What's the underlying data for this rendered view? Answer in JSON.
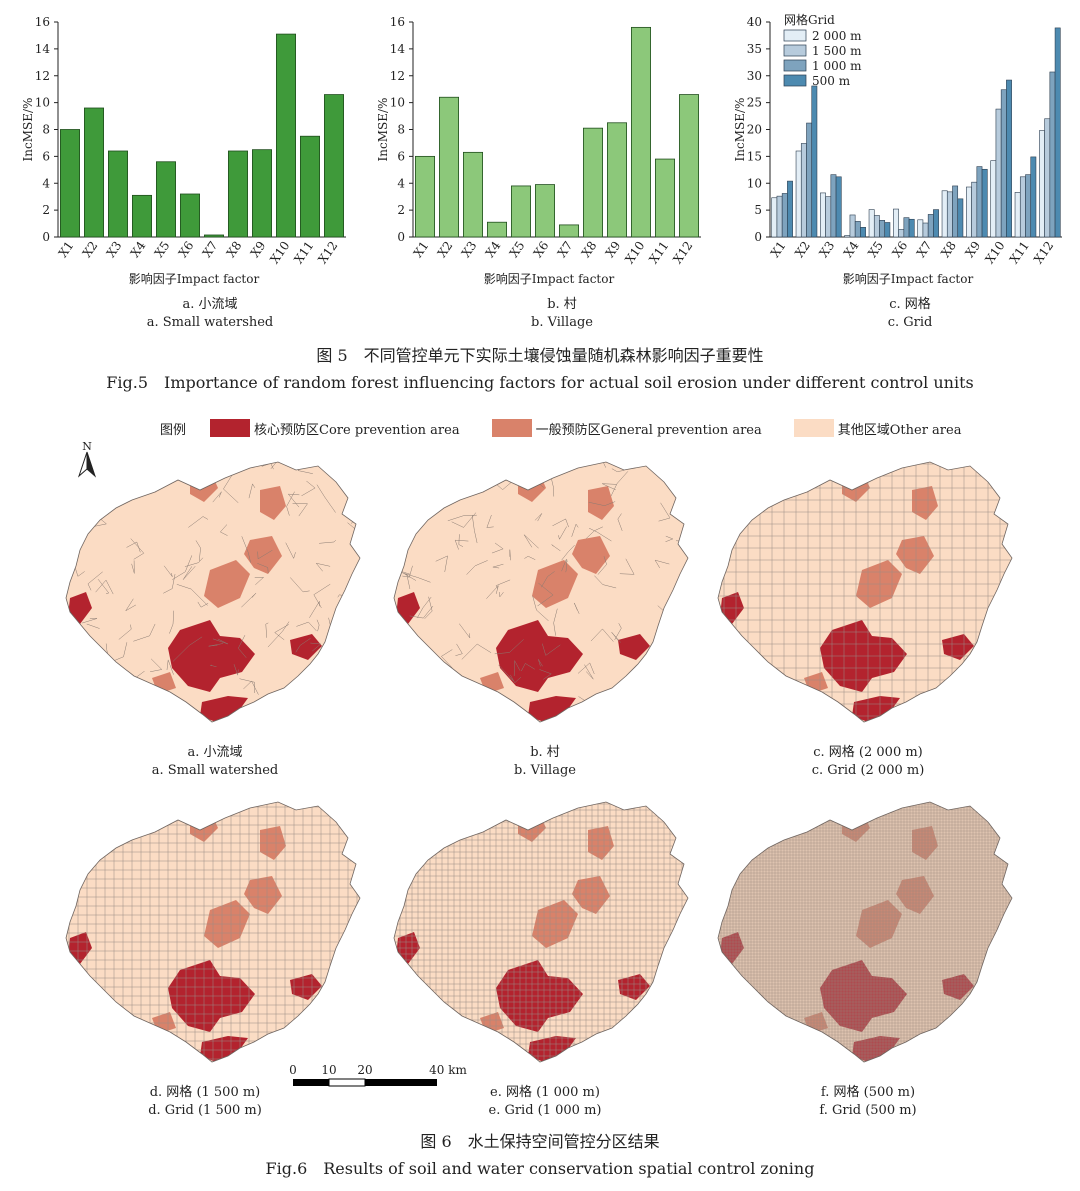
{
  "fig5": {
    "caption_cn": "图 5　不同管控单元下实际土壤侵蚀量随机森林影响因子重要性",
    "caption_en": "Fig.5　Importance of random forest influencing factors for actual soil erosion under different control units",
    "xlabel": "影响因子Impact factor",
    "ylabel": "IncMSE/%"
  },
  "chart_data": [
    {
      "type": "bar",
      "title": "a. Small watershed",
      "sub_cn": "a. 小流域",
      "sub_en": "a. Small watershed",
      "categories": [
        "X1",
        "X2",
        "X3",
        "X4",
        "X5",
        "X6",
        "X7",
        "X8",
        "X9",
        "X10",
        "X11",
        "X12"
      ],
      "values": [
        8.0,
        9.6,
        6.4,
        3.1,
        5.6,
        3.2,
        0.15,
        6.4,
        6.5,
        15.1,
        7.5,
        10.6
      ],
      "ylim": [
        0,
        16
      ],
      "yticks": [
        0,
        2,
        4,
        6,
        8,
        10,
        12,
        14,
        16
      ],
      "xlabel": "影响因子Impact factor",
      "ylabel": "IncMSE/%",
      "color": "#3f9a3a"
    },
    {
      "type": "bar",
      "title": "b. Village",
      "sub_cn": "b. 村",
      "sub_en": "b. Village",
      "categories": [
        "X1",
        "X2",
        "X3",
        "X4",
        "X5",
        "X6",
        "X7",
        "X8",
        "X9",
        "X10",
        "X11",
        "X12"
      ],
      "values": [
        6.0,
        10.4,
        6.3,
        1.1,
        3.8,
        3.9,
        0.9,
        8.1,
        8.5,
        15.6,
        5.8,
        10.6
      ],
      "ylim": [
        0,
        16
      ],
      "yticks": [
        0,
        2,
        4,
        6,
        8,
        10,
        12,
        14,
        16
      ],
      "xlabel": "影响因子Impact factor",
      "ylabel": "IncMSE/%",
      "color": "#8cc87a"
    },
    {
      "type": "bar",
      "title": "c. Grid",
      "sub_cn": "c. 网格",
      "sub_en": "c. Grid",
      "categories": [
        "X1",
        "X2",
        "X3",
        "X4",
        "X5",
        "X6",
        "X7",
        "X8",
        "X9",
        "X10",
        "X11",
        "X12"
      ],
      "legend_title": "网格Grid",
      "legend_position": "top-left",
      "series": [
        {
          "name": "2 000 m",
          "color": "#e3eef6",
          "values": [
            7.3,
            16.0,
            8.2,
            0.3,
            5.1,
            5.2,
            3.2,
            8.6,
            9.3,
            14.2,
            8.3,
            19.8
          ]
        },
        {
          "name": "1 500 m",
          "color": "#b7cbdc",
          "values": [
            7.6,
            17.4,
            7.5,
            4.1,
            4.0,
            1.4,
            2.6,
            8.4,
            10.2,
            23.8,
            11.2,
            22.0
          ]
        },
        {
          "name": "1 000 m",
          "color": "#7ea3be",
          "values": [
            8.1,
            21.2,
            11.6,
            2.9,
            3.1,
            3.6,
            4.2,
            9.5,
            13.1,
            27.4,
            11.6,
            30.7
          ]
        },
        {
          "name": "500 m",
          "color": "#4d8ab0",
          "values": [
            10.4,
            28.1,
            11.2,
            1.8,
            2.7,
            3.3,
            5.1,
            7.1,
            12.6,
            29.2,
            14.9,
            38.9
          ]
        }
      ],
      "ylim": [
        0,
        40
      ],
      "yticks": [
        0,
        5,
        10,
        15,
        20,
        25,
        30,
        35,
        40
      ],
      "xlabel": "影响因子Impact factor",
      "ylabel": "IncMSE/%"
    }
  ],
  "fig6": {
    "caption_cn": "图 6　水土保持空间管控分区结果",
    "caption_en": "Fig.6　Results of soil and water conservation spatial control zoning",
    "legend_title": "图例",
    "legend_items": [
      {
        "label": "核心预防区Core prevention area",
        "color": "#b3232e"
      },
      {
        "label": "一般预防区General prevention area",
        "color": "#d9826a"
      },
      {
        "label": "其他区域Other area",
        "color": "#fbdcc4"
      }
    ],
    "north": "N",
    "scale_labels": [
      "0",
      "10",
      "20",
      "40 km"
    ],
    "maps": [
      {
        "cn": "a. 小流域",
        "en": "a. Small watershed"
      },
      {
        "cn": "b. 村",
        "en": "b. Village"
      },
      {
        "cn": "c. 网格 (2 000 m)",
        "en": "c. Grid (2 000 m)"
      },
      {
        "cn": "d. 网格 (1 500 m)",
        "en": "d. Grid (1 500 m)"
      },
      {
        "cn": "e. 网格 (1 000 m)",
        "en": "e. Grid (1 000 m)"
      },
      {
        "cn": "f. 网格 (500 m)",
        "en": "f. Grid (500 m)"
      }
    ]
  }
}
